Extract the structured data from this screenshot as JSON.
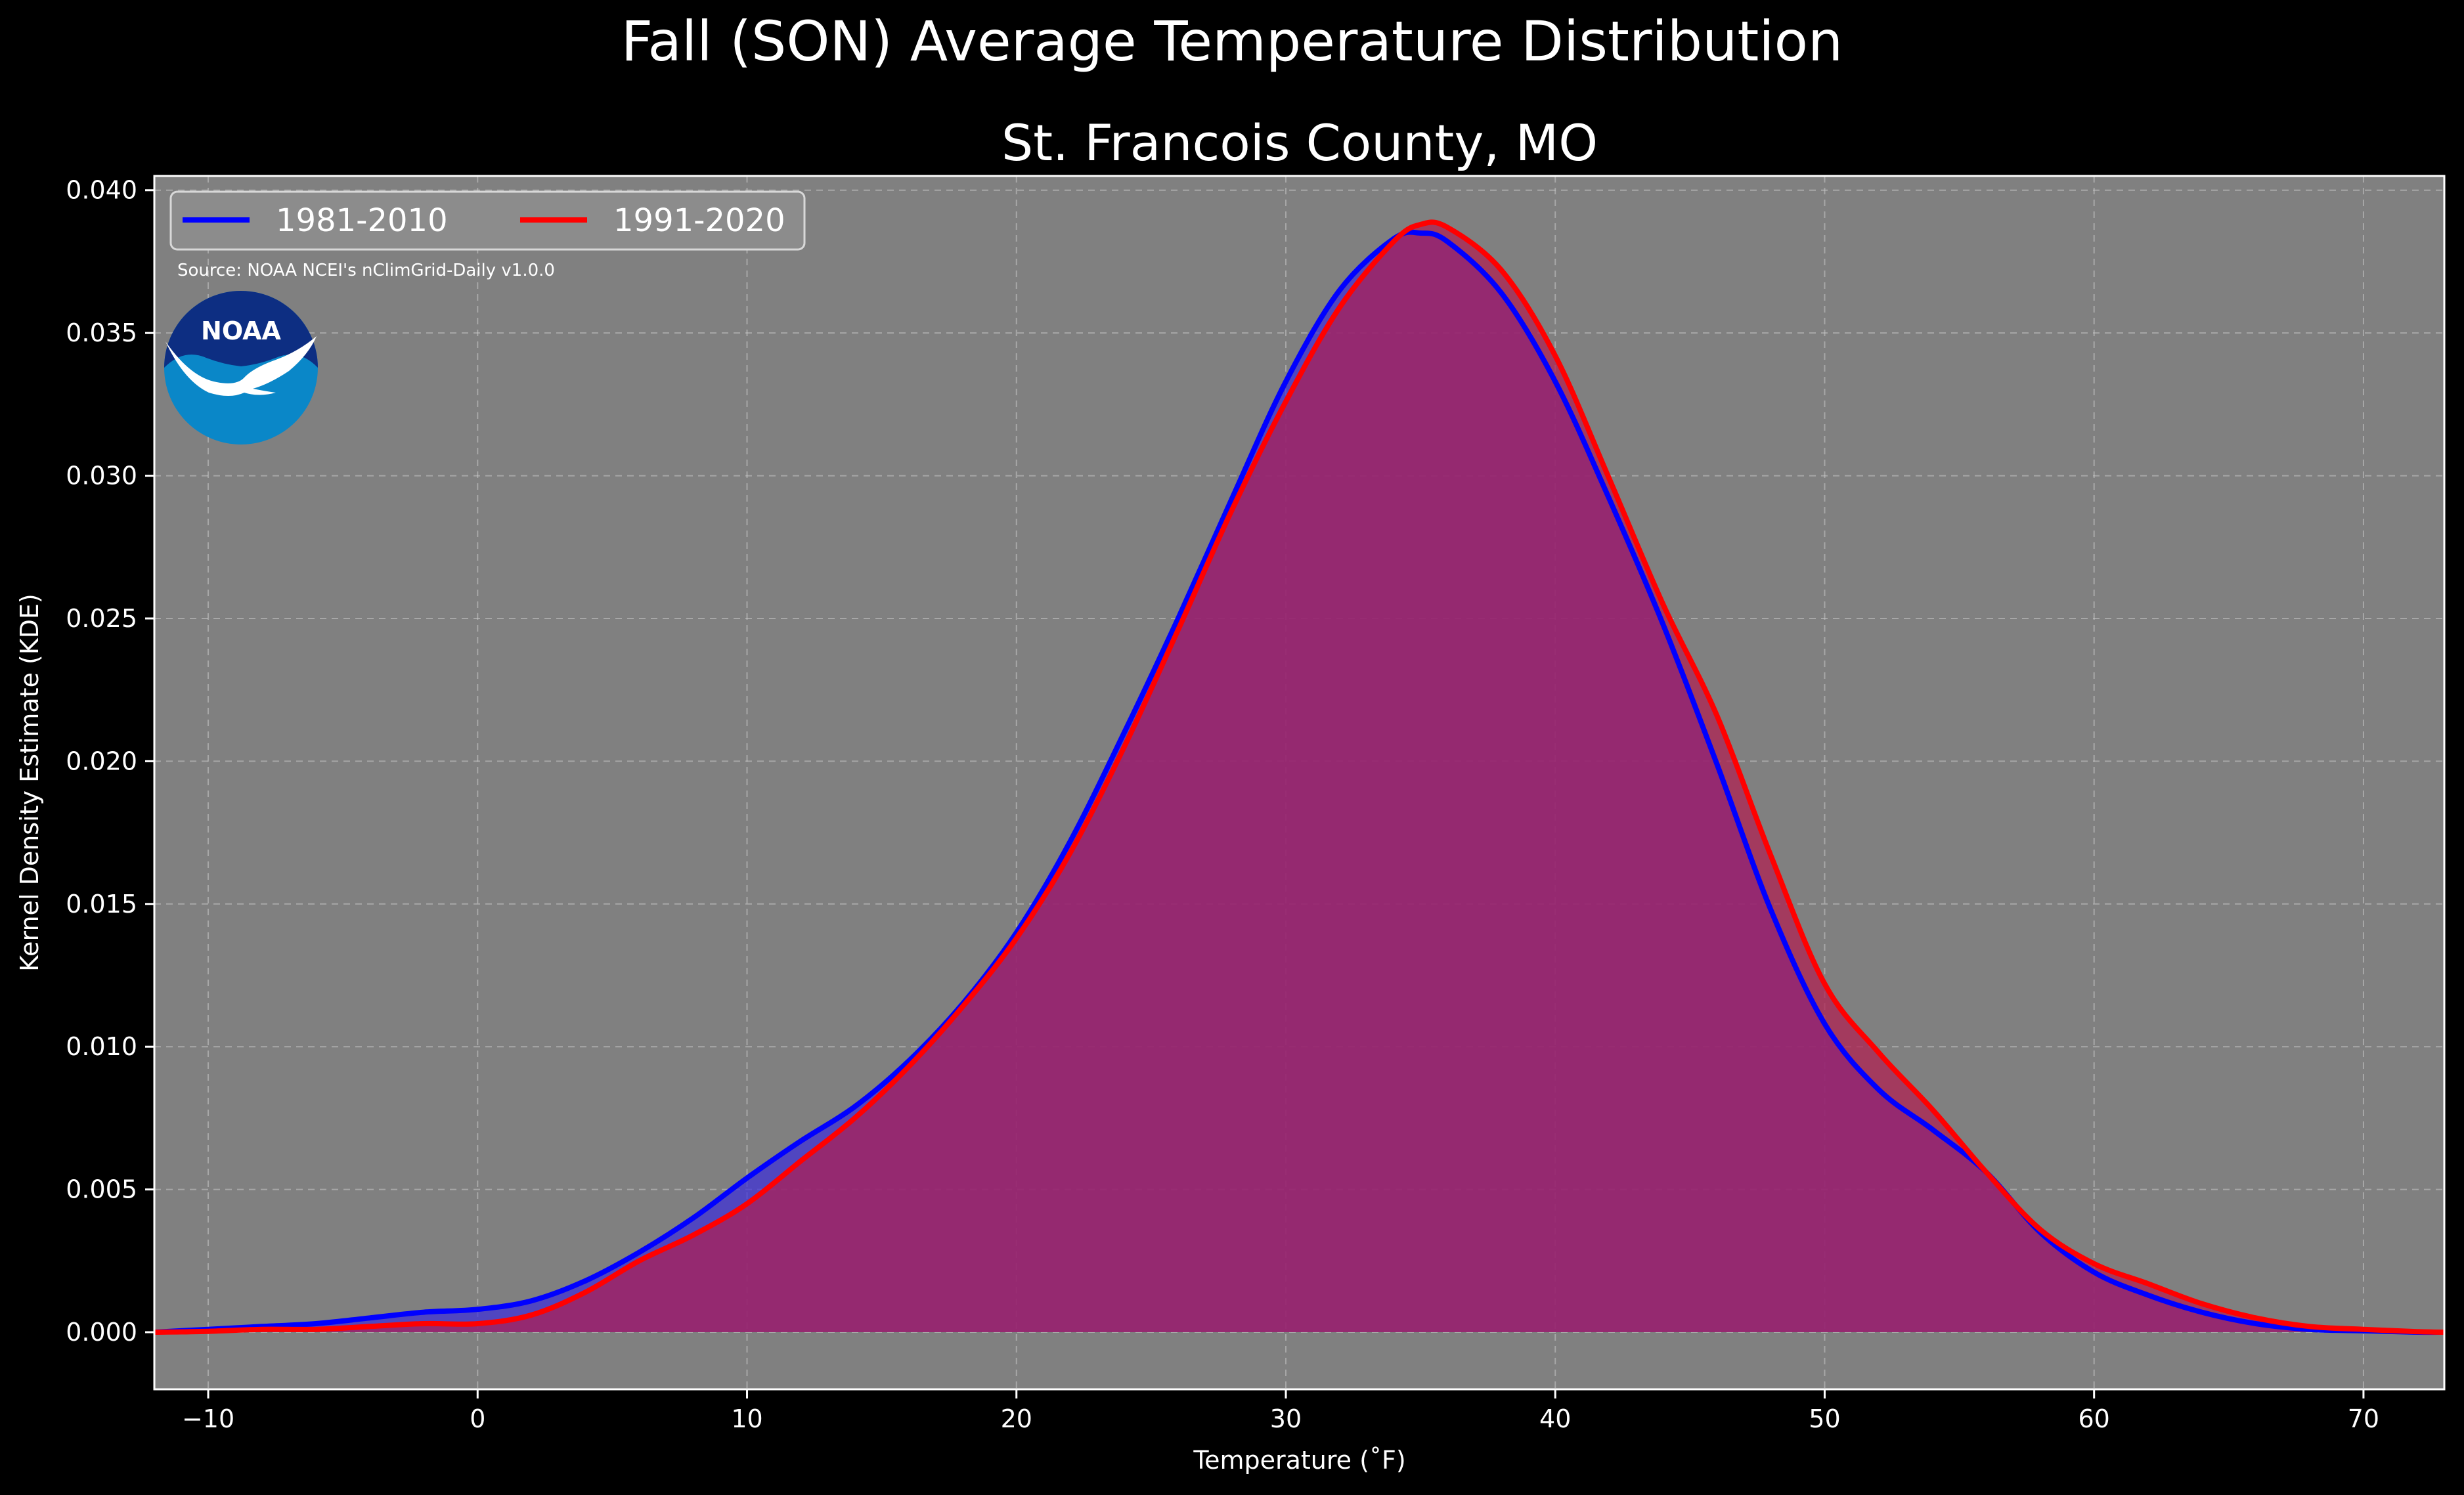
{
  "chart_data": {
    "type": "area",
    "suptitle": "Fall (SON) Average Temperature Distribution",
    "title": "St. Francois County, MO",
    "xlabel": "Temperature (˚F)",
    "ylabel": "Kernel Density Estimate (KDE)",
    "xlim": [
      -12,
      73
    ],
    "ylim": [
      -0.002,
      0.0405
    ],
    "xticks": [
      -10,
      0,
      10,
      20,
      30,
      40,
      50,
      60,
      70
    ],
    "xtick_labels": [
      "−10",
      "0",
      "10",
      "20",
      "30",
      "40",
      "50",
      "60",
      "70"
    ],
    "yticks": [
      0.0,
      0.005,
      0.01,
      0.015,
      0.02,
      0.025,
      0.03,
      0.035,
      0.04
    ],
    "ytick_labels": [
      "0.000",
      "0.005",
      "0.010",
      "0.015",
      "0.020",
      "0.025",
      "0.030",
      "0.035",
      "0.040"
    ],
    "grid": true,
    "legend_position": "top-left",
    "background": "#808080",
    "source": "Source: NOAA NCEI's nClimGrid-Daily v1.0.0",
    "logo_text": "NOAA",
    "series": [
      {
        "name": "1981-2010",
        "color": "#0000ff",
        "fill": "#3c2ddc",
        "x": [
          -12,
          -10,
          -8,
          -6,
          -4,
          -2,
          0,
          2,
          4,
          6,
          8,
          10,
          12,
          14,
          16,
          18,
          20,
          22,
          24,
          26,
          28,
          30,
          32,
          34,
          35,
          36,
          38,
          40,
          42,
          44,
          46,
          48,
          50,
          52,
          54,
          56,
          58,
          60,
          62,
          64,
          66,
          68,
          70,
          72,
          73
        ],
        "y": [
          0.0,
          0.0001,
          0.0002,
          0.0003,
          0.0005,
          0.0007,
          0.0008,
          0.0011,
          0.0018,
          0.0028,
          0.004,
          0.0054,
          0.0067,
          0.0079,
          0.0095,
          0.0115,
          0.014,
          0.0172,
          0.021,
          0.025,
          0.0292,
          0.0333,
          0.0365,
          0.0383,
          0.0385,
          0.0382,
          0.0364,
          0.0333,
          0.0292,
          0.0248,
          0.0199,
          0.0148,
          0.0108,
          0.0085,
          0.0071,
          0.0056,
          0.0035,
          0.0021,
          0.0013,
          0.0007,
          0.0003,
          0.0001,
          5e-05,
          0.0,
          0.0
        ]
      },
      {
        "name": "1991-2020",
        "color": "#ff0000",
        "fill": "#b01e50",
        "x": [
          -12,
          -10,
          -8,
          -6,
          -4,
          -2,
          0,
          2,
          4,
          6,
          8,
          10,
          12,
          14,
          16,
          18,
          20,
          22,
          24,
          26,
          28,
          30,
          32,
          34,
          35,
          36,
          38,
          40,
          42,
          44,
          46,
          48,
          50,
          52,
          54,
          56,
          58,
          60,
          62,
          64,
          66,
          68,
          70,
          72,
          73
        ],
        "y": [
          0.0,
          3e-05,
          0.0001,
          0.0001,
          0.0002,
          0.0003,
          0.0003,
          0.0006,
          0.0014,
          0.0025,
          0.0034,
          0.0045,
          0.006,
          0.0075,
          0.0093,
          0.0114,
          0.0138,
          0.0168,
          0.0205,
          0.0246,
          0.0288,
          0.0326,
          0.0359,
          0.0382,
          0.0388,
          0.0387,
          0.0372,
          0.0342,
          0.0299,
          0.0255,
          0.0216,
          0.0167,
          0.0122,
          0.0098,
          0.0078,
          0.0056,
          0.0036,
          0.0024,
          0.0017,
          0.001,
          0.0005,
          0.0002,
          0.0001,
          2e-05,
          0.0
        ]
      }
    ]
  }
}
